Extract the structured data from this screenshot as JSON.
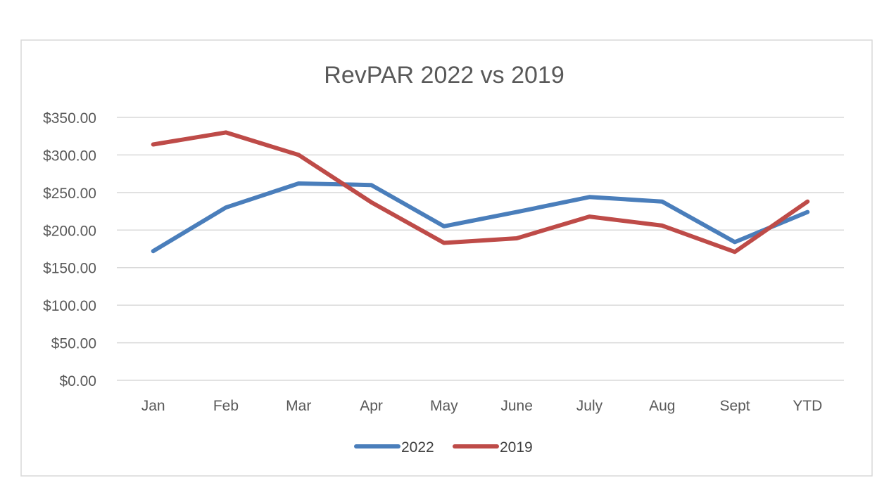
{
  "chart_data": {
    "type": "line",
    "title": "RevPAR 2022 vs 2019",
    "xlabel": "",
    "ylabel": "",
    "categories": [
      "Jan",
      "Feb",
      "Mar",
      "Apr",
      "May",
      "June",
      "July",
      "Aug",
      "Sept",
      "YTD"
    ],
    "y_ticks": [
      "$0.00",
      "$50.00",
      "$100.00",
      "$150.00",
      "$200.00",
      "$250.00",
      "$300.00",
      "$350.00"
    ],
    "ylim": [
      0,
      350
    ],
    "grid": true,
    "legend_position": "bottom",
    "series": [
      {
        "name": "2022",
        "color": "#4a7ebb",
        "values": [
          172,
          230,
          262,
          260,
          205,
          224,
          244,
          238,
          184,
          224
        ]
      },
      {
        "name": "2019",
        "color": "#be4b48",
        "values": [
          314,
          330,
          300,
          237,
          183,
          189,
          218,
          206,
          171,
          238
        ]
      }
    ]
  }
}
